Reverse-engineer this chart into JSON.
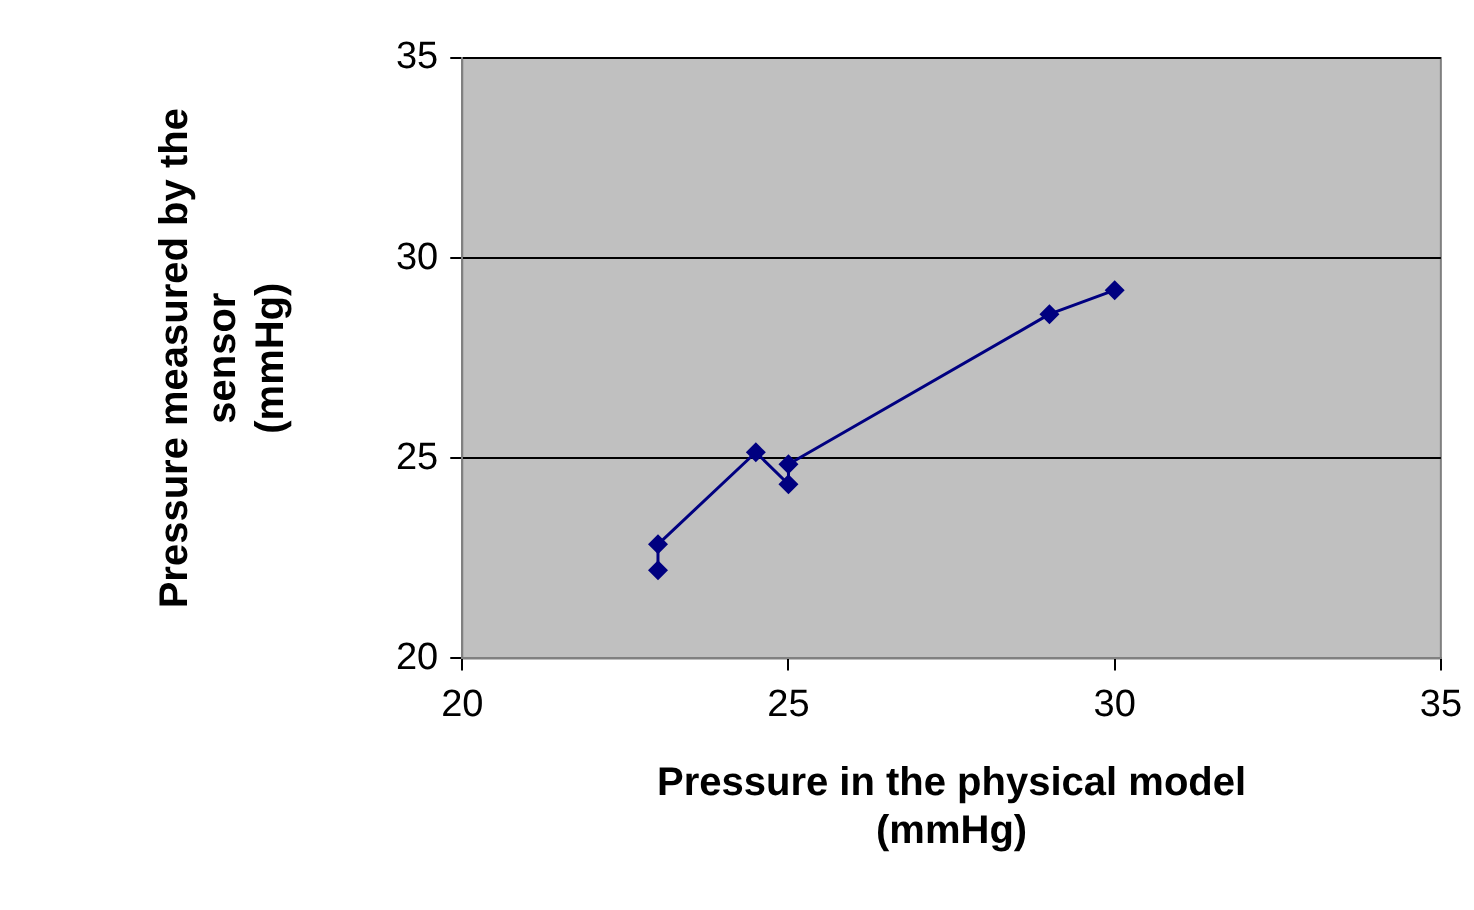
{
  "chart_data": {
    "type": "line",
    "xlabel": "Pressure in the physical model (mmHg)",
    "ylabel": "Pressure measured by the sensor (mmHg)",
    "x": [
      23,
      23,
      24.5,
      25,
      25,
      29,
      30
    ],
    "series": [
      {
        "color": "#000080",
        "values": [
          22.2,
          22.85,
          25.15,
          24.35,
          24.85,
          28.6,
          29.2
        ]
      }
    ],
    "xlim": [
      20,
      35
    ],
    "xticks": [
      20,
      25,
      30,
      35
    ],
    "ylim": [
      20,
      35
    ],
    "yticks": [
      20,
      25,
      30,
      35
    ],
    "grid": "y",
    "legend": false,
    "marker": "diamond",
    "line_style": "solid"
  }
}
